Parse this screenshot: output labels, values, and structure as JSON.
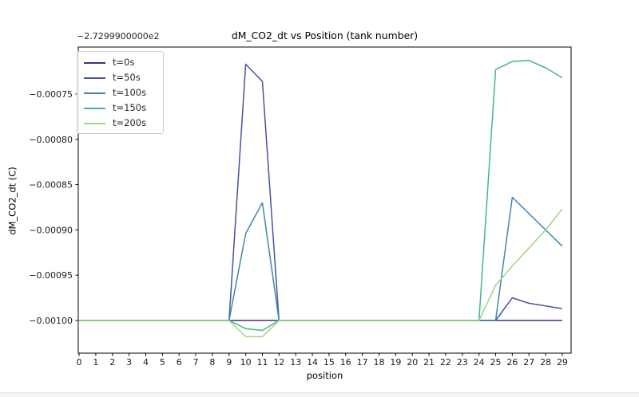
{
  "window": {
    "background": "#ffffff",
    "bottom_strip_color": "#f3f3f4"
  },
  "chart": {
    "offset_text": "−2.7299900000e2"
  },
  "chart_data": {
    "type": "line",
    "title": "dM_CO2_dt vs Position (tank number)",
    "xlabel": "position",
    "ylabel": "dM_CO2_dt (C)",
    "axis_offset_text": "−2.7299900000e2",
    "grid": false,
    "legend_position": "upper left",
    "xlim": [
      -0.05,
      29.53
    ],
    "ylim": [
      -0.0010361,
      -0.0006981
    ],
    "x": [
      0,
      1,
      2,
      3,
      4,
      5,
      6,
      7,
      8,
      9,
      10,
      11,
      12,
      13,
      14,
      15,
      16,
      17,
      18,
      19,
      20,
      21,
      22,
      23,
      24,
      25,
      26,
      27,
      28,
      29
    ],
    "xticks": {
      "values": [
        0,
        1,
        2,
        3,
        4,
        5,
        6,
        7,
        8,
        9,
        10,
        11,
        12,
        13,
        14,
        15,
        16,
        17,
        18,
        19,
        20,
        21,
        22,
        23,
        24,
        25,
        26,
        27,
        28,
        29
      ],
      "labels": [
        "0",
        "1",
        "2",
        "3",
        "4",
        "5",
        "6",
        "7",
        "8",
        "9",
        "10",
        "11",
        "12",
        "13",
        "14",
        "15",
        "16",
        "17",
        "18",
        "19",
        "20",
        "21",
        "22",
        "23",
        "24",
        "25",
        "26",
        "27",
        "28",
        "29"
      ]
    },
    "yticks": {
      "values": [
        -0.00075,
        -0.0008,
        -0.00085,
        -0.0009,
        -0.00095,
        -0.001
      ],
      "labels": [
        "−0.00075",
        "−0.00080",
        "−0.00085",
        "−0.00090",
        "−0.00095",
        "−0.00100"
      ]
    },
    "series": [
      {
        "name": "t=0s",
        "color": "#472d7b",
        "values": [
          -0.001,
          -0.001,
          -0.001,
          -0.001,
          -0.001,
          -0.001,
          -0.001,
          -0.001,
          -0.001,
          -0.001,
          -0.001,
          -0.001,
          -0.001,
          -0.001,
          -0.001,
          -0.001,
          -0.001,
          -0.001,
          -0.001,
          -0.001,
          -0.001,
          -0.001,
          -0.001,
          -0.001,
          -0.001,
          -0.001,
          -0.001,
          -0.001,
          -0.001,
          -0.001
        ]
      },
      {
        "name": "t=50s",
        "color": "#46539e",
        "values": [
          -0.001,
          -0.001,
          -0.001,
          -0.001,
          -0.001,
          -0.001,
          -0.001,
          -0.001,
          -0.001,
          -0.001,
          -0.000717,
          -0.000736,
          -0.001,
          -0.001,
          -0.001,
          -0.001,
          -0.001,
          -0.001,
          -0.001,
          -0.001,
          -0.001,
          -0.001,
          -0.001,
          -0.001,
          -0.001,
          -0.001,
          -0.000975,
          -0.000981,
          -0.000984,
          -0.000987
        ]
      },
      {
        "name": "t=100s",
        "color": "#4184ae",
        "values": [
          -0.001,
          -0.001,
          -0.001,
          -0.001,
          -0.001,
          -0.001,
          -0.001,
          -0.001,
          -0.001,
          -0.001,
          -0.000904,
          -0.00087,
          -0.001,
          -0.001,
          -0.001,
          -0.001,
          -0.001,
          -0.001,
          -0.001,
          -0.001,
          -0.001,
          -0.001,
          -0.001,
          -0.001,
          -0.001,
          -0.001,
          -0.000864,
          -0.000882,
          -0.0009,
          -0.000918
        ]
      },
      {
        "name": "t=150s",
        "color": "#45b48e",
        "values": [
          -0.001,
          -0.001,
          -0.001,
          -0.001,
          -0.001,
          -0.001,
          -0.001,
          -0.001,
          -0.001,
          -0.001,
          -0.001009,
          -0.001011,
          -0.001,
          -0.001,
          -0.001,
          -0.001,
          -0.001,
          -0.001,
          -0.001,
          -0.001,
          -0.001,
          -0.001,
          -0.001,
          -0.001,
          -0.001,
          -0.000723,
          -0.000714,
          -0.000713,
          -0.000721,
          -0.000732
        ]
      },
      {
        "name": "t=200s",
        "color": "#9bd583",
        "values": [
          -0.001,
          -0.001,
          -0.001,
          -0.001,
          -0.001,
          -0.001,
          -0.001,
          -0.001,
          -0.001,
          -0.001,
          -0.001018,
          -0.001018,
          -0.001,
          -0.001,
          -0.001,
          -0.001,
          -0.001,
          -0.001,
          -0.001,
          -0.001,
          -0.001,
          -0.001,
          -0.001,
          -0.001,
          -0.001,
          -0.000961,
          -0.00094,
          -0.00092,
          -0.0009,
          -0.000877
        ]
      }
    ]
  }
}
